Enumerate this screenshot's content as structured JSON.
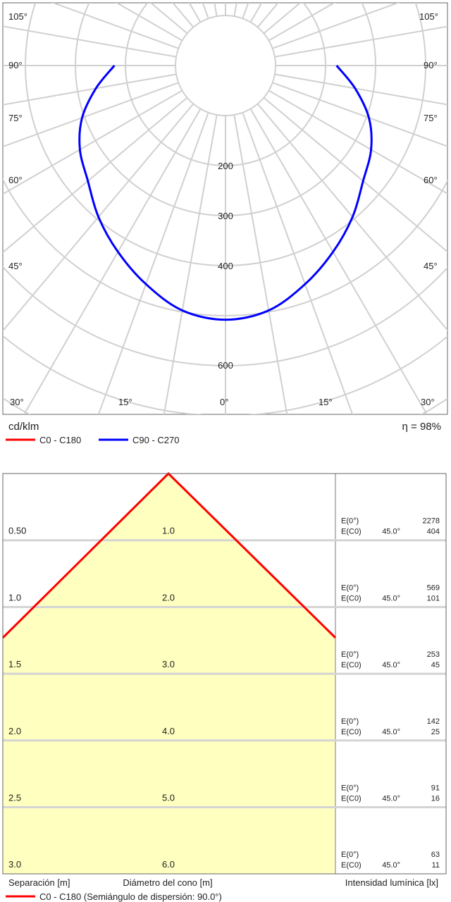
{
  "polar": {
    "unit": "cd/klm",
    "efficiency": "η = 98%",
    "angle_labels_left": [
      "105°",
      "90°",
      "75°",
      "60°",
      "45°",
      "30°",
      "15°"
    ],
    "angle_labels_right": [
      "105°",
      "90°",
      "75°",
      "60°",
      "45°",
      "30°",
      "15°"
    ],
    "bottom_center_label": "0°",
    "radial_labels": [
      "200",
      "300",
      "400",
      "600"
    ],
    "legend": [
      {
        "name": "C0 - C180",
        "color": "#ff0000"
      },
      {
        "name": "C90 - C270",
        "color": "#0000ff"
      }
    ]
  },
  "cone": {
    "rows": [
      {
        "separation": "0.50",
        "diameter": "1.0",
        "e0_label": "E(0°)",
        "e0_value": "2278",
        "ec0_label": "E(C0)",
        "ec0_angle": "45.0°",
        "ec0_value": "404"
      },
      {
        "separation": "1.0",
        "diameter": "2.0",
        "e0_label": "E(0°)",
        "e0_value": "569",
        "ec0_label": "E(C0)",
        "ec0_angle": "45.0°",
        "ec0_value": "101"
      },
      {
        "separation": "1.5",
        "diameter": "3.0",
        "e0_label": "E(0°)",
        "e0_value": "253",
        "ec0_label": "E(C0)",
        "ec0_angle": "45.0°",
        "ec0_value": "45"
      },
      {
        "separation": "2.0",
        "diameter": "4.0",
        "e0_label": "E(0°)",
        "e0_value": "142",
        "ec0_label": "E(C0)",
        "ec0_angle": "45.0°",
        "ec0_value": "25"
      },
      {
        "separation": "2.5",
        "diameter": "5.0",
        "e0_label": "E(0°)",
        "e0_value": "91",
        "ec0_label": "E(C0)",
        "ec0_angle": "45.0°",
        "ec0_value": "16"
      },
      {
        "separation": "3.0",
        "diameter": "6.0",
        "e0_label": "E(0°)",
        "e0_value": "63",
        "ec0_label": "E(C0)",
        "ec0_angle": "45.0°",
        "ec0_value": "11"
      }
    ],
    "footer": {
      "separation": "Separación [m]",
      "diameter": "Diámetro del cono [m]",
      "illuminance": "Intensidad lumínica [lx]"
    },
    "legend": "C0 - C180 (Semiángulo de dispersión: 90.0°)",
    "legend_color": "#ff0000",
    "fill_color": "#ffffc0"
  },
  "chart_data": [
    {
      "type": "polar",
      "unit": "cd/klm",
      "radial_ticks": [
        200,
        300,
        400,
        600
      ],
      "series": [
        {
          "name": "C90 - C270",
          "color": "#0000ff",
          "angles_deg": [
            0,
            10,
            20,
            30,
            40,
            50,
            60,
            70,
            80,
            90
          ],
          "values": [
            508,
            497,
            465,
            430,
            395,
            359,
            336,
            305,
            263,
            222
          ]
        }
      ],
      "efficiency": "η = 98%"
    },
    {
      "type": "table",
      "half_angle_deg": 90.0,
      "separation_m": [
        0.5,
        1.0,
        1.5,
        2.0,
        2.5,
        3.0
      ],
      "cone_diameter_m": [
        1.0,
        2.0,
        3.0,
        4.0,
        5.0,
        6.0
      ],
      "E0_lx": [
        2278,
        569,
        253,
        142,
        91,
        63
      ],
      "EC0_45_lx": [
        404,
        101,
        45,
        25,
        16,
        11
      ]
    }
  ]
}
